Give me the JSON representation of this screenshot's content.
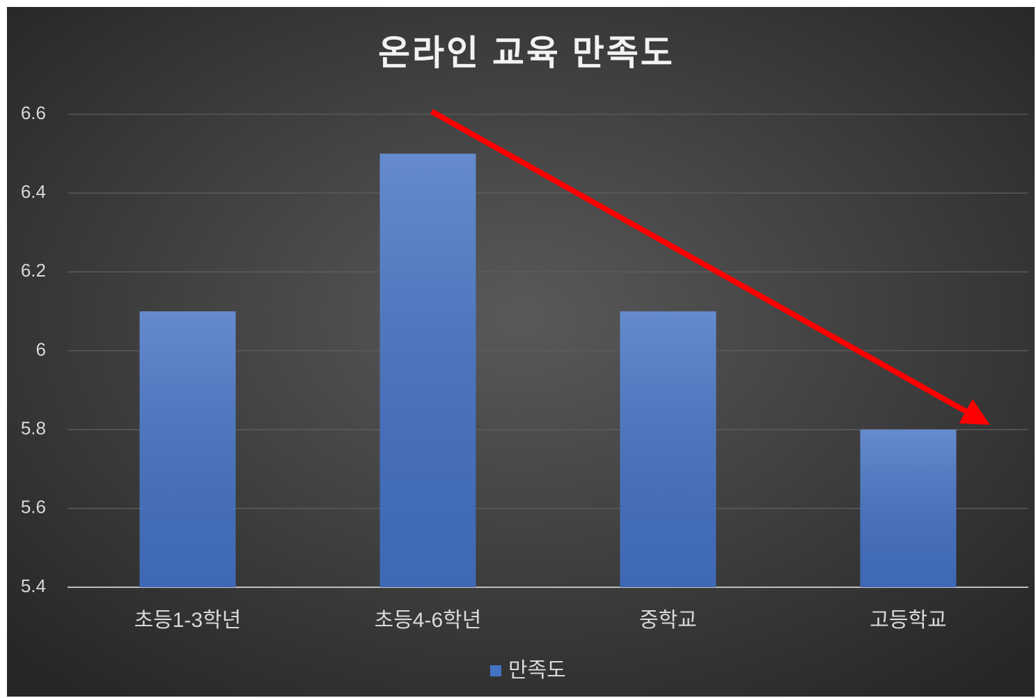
{
  "chart_data": {
    "type": "bar",
    "title": "온라인 교육 만족도",
    "categories": [
      "초등1-3학년",
      "초등4-6학년",
      "중학교",
      "고등학교"
    ],
    "series": [
      {
        "name": "만족도",
        "color": "#4472c4",
        "values": [
          6.1,
          6.5,
          6.1,
          5.8
        ]
      }
    ],
    "ylim": [
      5.4,
      6.6
    ],
    "yticks": [
      5.4,
      5.6,
      5.8,
      6,
      6.2,
      6.4,
      6.6
    ],
    "grid": true,
    "legend": "bottom"
  }
}
